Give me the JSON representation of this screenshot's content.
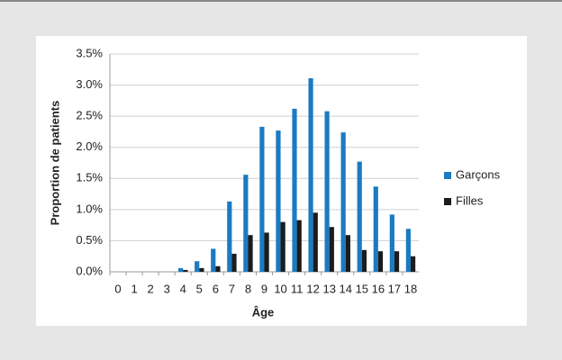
{
  "chart_data": {
    "type": "bar",
    "y_label": "Proportion de patients",
    "x_label": "Âge",
    "categories": [
      "0",
      "1",
      "2",
      "3",
      "4",
      "5",
      "6",
      "7",
      "8",
      "9",
      "10",
      "11",
      "12",
      "13",
      "14",
      "15",
      "16",
      "17",
      "18"
    ],
    "series": [
      {
        "name": "Garçons",
        "color": "#1a7bc1",
        "values": [
          0,
          0,
          0,
          0,
          0.06,
          0.17,
          0.37,
          1.13,
          1.56,
          2.33,
          2.27,
          2.62,
          3.11,
          2.58,
          2.24,
          1.77,
          1.37,
          0.92,
          0.69
        ]
      },
      {
        "name": "Filles",
        "color": "#1c1c1c",
        "values": [
          0,
          0,
          0,
          0,
          0.03,
          0.06,
          0.09,
          0.29,
          0.59,
          0.63,
          0.8,
          0.83,
          0.95,
          0.72,
          0.59,
          0.35,
          0.33,
          0.33,
          0.25
        ]
      }
    ],
    "ylim": [
      0,
      3.5
    ],
    "yticks": [
      {
        "value": 0,
        "label": "0.0%"
      },
      {
        "value": 0.5,
        "label": "0.5%"
      },
      {
        "value": 1,
        "label": "1.0%"
      },
      {
        "value": 1.5,
        "label": "1.5%"
      },
      {
        "value": 2,
        "label": "2.0%"
      },
      {
        "value": 2.5,
        "label": "2.5%"
      },
      {
        "value": 3,
        "label": "3.0%"
      },
      {
        "value": 3.5,
        "label": "3.5%"
      }
    ],
    "grid": true,
    "legend": "right"
  }
}
